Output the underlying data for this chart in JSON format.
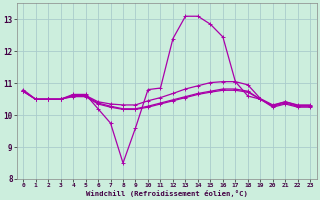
{
  "background_color": "#cceedd",
  "grid_color": "#aacccc",
  "line_color": "#aa00aa",
  "marker_color": "#aa00aa",
  "xlabel": "Windchill (Refroidissement éolien,°C)",
  "xlim": [
    -0.5,
    23.5
  ],
  "ylim": [
    8,
    13.5
  ],
  "yticks": [
    8,
    9,
    10,
    11,
    12,
    13
  ],
  "xticks": [
    0,
    1,
    2,
    3,
    4,
    5,
    6,
    7,
    8,
    9,
    10,
    11,
    12,
    13,
    14,
    15,
    16,
    17,
    18,
    19,
    20,
    21,
    22,
    23
  ],
  "series": [
    {
      "x": [
        0,
        1,
        2,
        3,
        4,
        5,
        6,
        7,
        8,
        9,
        10,
        11,
        12,
        13,
        14,
        15,
        16,
        17,
        18,
        19,
        20,
        21,
        22,
        23
      ],
      "y": [
        10.8,
        10.5,
        10.5,
        10.5,
        10.65,
        10.65,
        10.2,
        9.75,
        8.5,
        9.6,
        10.8,
        10.85,
        12.4,
        13.1,
        13.1,
        12.85,
        12.45,
        11.05,
        10.6,
        10.5,
        10.3,
        10.42,
        10.3,
        10.3
      ]
    },
    {
      "x": [
        0,
        1,
        2,
        3,
        4,
        5,
        6,
        7,
        8,
        9,
        10,
        11,
        12,
        13,
        14,
        15,
        16,
        17,
        18,
        19,
        20,
        21,
        22,
        23
      ],
      "y": [
        10.75,
        10.5,
        10.5,
        10.5,
        10.62,
        10.62,
        10.42,
        10.35,
        10.32,
        10.32,
        10.45,
        10.55,
        10.68,
        10.82,
        10.92,
        11.02,
        11.05,
        11.05,
        10.95,
        10.52,
        10.32,
        10.42,
        10.32,
        10.32
      ]
    },
    {
      "x": [
        0,
        1,
        2,
        3,
        4,
        5,
        6,
        7,
        8,
        9,
        10,
        11,
        12,
        13,
        14,
        15,
        16,
        17,
        18,
        19,
        20,
        21,
        22,
        23
      ],
      "y": [
        10.75,
        10.5,
        10.5,
        10.5,
        10.6,
        10.6,
        10.38,
        10.28,
        10.2,
        10.2,
        10.28,
        10.38,
        10.48,
        10.58,
        10.68,
        10.75,
        10.82,
        10.82,
        10.75,
        10.5,
        10.28,
        10.38,
        10.28,
        10.28
      ]
    },
    {
      "x": [
        0,
        1,
        2,
        3,
        4,
        5,
        6,
        7,
        8,
        9,
        10,
        11,
        12,
        13,
        14,
        15,
        16,
        17,
        18,
        19,
        20,
        21,
        22,
        23
      ],
      "y": [
        10.75,
        10.5,
        10.5,
        10.5,
        10.58,
        10.58,
        10.35,
        10.25,
        10.18,
        10.18,
        10.25,
        10.35,
        10.45,
        10.55,
        10.65,
        10.72,
        10.78,
        10.78,
        10.72,
        10.5,
        10.25,
        10.35,
        10.25,
        10.25
      ]
    }
  ]
}
